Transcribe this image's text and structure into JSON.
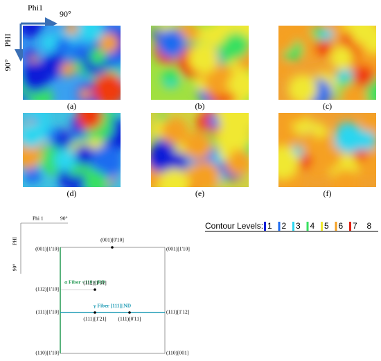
{
  "top_axes": {
    "x_label": "Phi1",
    "x_end": "90°",
    "y_label": "PHI",
    "y_end": "90°"
  },
  "panels": [
    "(a)",
    "(b)",
    "(c)",
    "(d)",
    "(e)",
    "(f)"
  ],
  "schematic": {
    "x_label": "Phi 1",
    "x_end": "90°",
    "y_label": "PHI",
    "y_end": "90°",
    "fibers": [
      "α Fiber <110>||RD",
      "γ Fiber [111]||ND"
    ],
    "points": [
      "(001)[0'10]",
      "(001)[1'10]",
      "(001)[1'10]",
      "(112)[1'10]",
      "(112)[1'31]",
      "(111)[1'10]",
      "(111)[1'21]",
      "(111)[0'11]",
      "(111)[1'12]",
      "(110)[1'10]",
      "(110)[001]"
    ]
  },
  "legend": {
    "title": "Contour Levels:",
    "levels": [
      "1",
      "2",
      "3",
      "4",
      "5",
      "6",
      "7",
      "8"
    ]
  }
}
